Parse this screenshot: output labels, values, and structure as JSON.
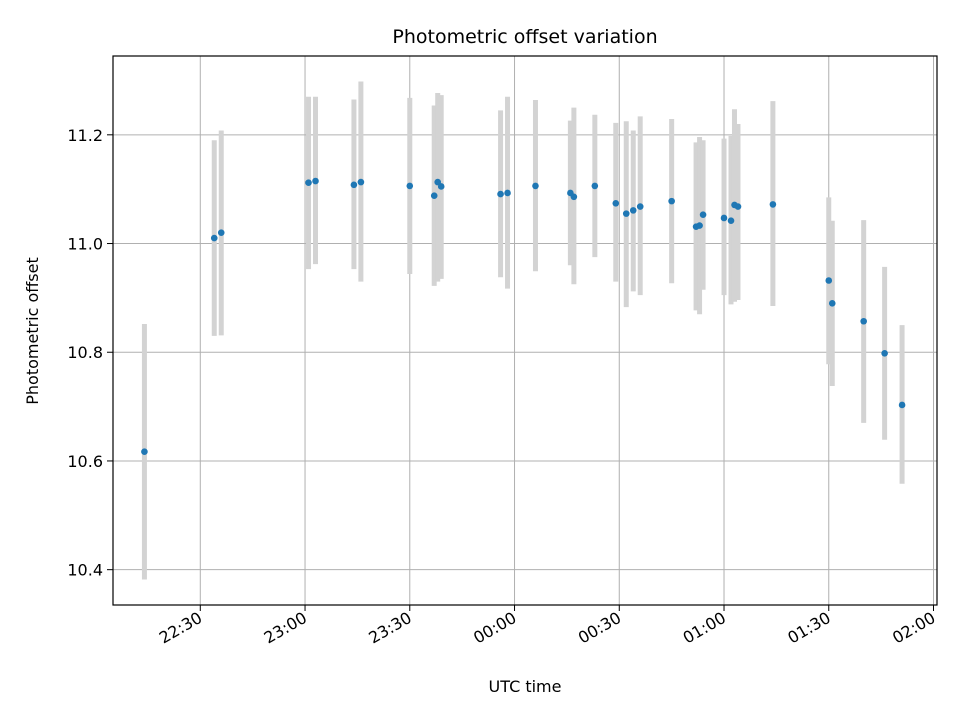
{
  "chart_data": {
    "type": "scatter",
    "title": "Photometric offset variation",
    "xlabel": "UTC time",
    "ylabel": "Photometric offset",
    "grid": true,
    "xlim": [
      "22:05",
      "02:01"
    ],
    "ylim": [
      10.335,
      11.345
    ],
    "x_ticks": [
      "22:30",
      "23:00",
      "23:30",
      "00:00",
      "00:30",
      "01:00",
      "01:30",
      "02:00"
    ],
    "y_ticks": [
      "10.4",
      "10.6",
      "10.8",
      "11.0",
      "11.2"
    ],
    "marker_color": "#1f77b4",
    "errorbar_color": "#d3d3d3",
    "points": [
      {
        "x": "22:14",
        "y": 10.617,
        "lo": 10.382,
        "hi": 10.852
      },
      {
        "x": "22:34",
        "y": 11.01,
        "lo": 10.83,
        "hi": 11.19
      },
      {
        "x": "22:36",
        "y": 11.02,
        "lo": 10.831,
        "hi": 11.208
      },
      {
        "x": "23:01",
        "y": 11.112,
        "lo": 10.953,
        "hi": 11.27
      },
      {
        "x": "23:03",
        "y": 11.115,
        "lo": 10.962,
        "hi": 11.27
      },
      {
        "x": "23:14",
        "y": 11.108,
        "lo": 10.953,
        "hi": 11.265
      },
      {
        "x": "23:16",
        "y": 11.113,
        "lo": 10.93,
        "hi": 11.298
      },
      {
        "x": "23:30",
        "y": 11.106,
        "lo": 10.944,
        "hi": 11.268
      },
      {
        "x": "23:37",
        "y": 11.088,
        "lo": 10.922,
        "hi": 11.254
      },
      {
        "x": "23:38",
        "y": 11.113,
        "lo": 10.93,
        "hi": 11.277
      },
      {
        "x": "23:39",
        "y": 11.105,
        "lo": 10.935,
        "hi": 11.273
      },
      {
        "x": "23:56",
        "y": 11.091,
        "lo": 10.938,
        "hi": 11.245
      },
      {
        "x": "23:58",
        "y": 11.093,
        "lo": 10.917,
        "hi": 11.27
      },
      {
        "x": "00:06",
        "y": 11.106,
        "lo": 10.949,
        "hi": 11.264
      },
      {
        "x": "00:16",
        "y": 11.093,
        "lo": 10.96,
        "hi": 11.226
      },
      {
        "x": "00:17",
        "y": 11.086,
        "lo": 10.925,
        "hi": 11.25
      },
      {
        "x": "00:23",
        "y": 11.106,
        "lo": 10.975,
        "hi": 11.237
      },
      {
        "x": "00:29",
        "y": 11.074,
        "lo": 10.93,
        "hi": 11.222
      },
      {
        "x": "00:32",
        "y": 11.055,
        "lo": 10.883,
        "hi": 11.225
      },
      {
        "x": "00:34",
        "y": 11.061,
        "lo": 10.912,
        "hi": 11.208
      },
      {
        "x": "00:36",
        "y": 11.068,
        "lo": 10.905,
        "hi": 11.234
      },
      {
        "x": "00:45",
        "y": 11.078,
        "lo": 10.927,
        "hi": 11.229
      },
      {
        "x": "00:52",
        "y": 11.031,
        "lo": 10.877,
        "hi": 11.186
      },
      {
        "x": "00:53",
        "y": 11.033,
        "lo": 10.87,
        "hi": 11.196
      },
      {
        "x": "00:54",
        "y": 11.053,
        "lo": 10.915,
        "hi": 11.19
      },
      {
        "x": "01:00",
        "y": 11.047,
        "lo": 10.905,
        "hi": 11.193
      },
      {
        "x": "01:02",
        "y": 11.042,
        "lo": 10.888,
        "hi": 11.198
      },
      {
        "x": "01:03",
        "y": 11.071,
        "lo": 10.893,
        "hi": 11.247
      },
      {
        "x": "01:04",
        "y": 11.068,
        "lo": 10.896,
        "hi": 11.22
      },
      {
        "x": "01:14",
        "y": 11.072,
        "lo": 10.885,
        "hi": 11.262
      },
      {
        "x": "01:30",
        "y": 10.932,
        "lo": 10.778,
        "hi": 11.085
      },
      {
        "x": "01:31",
        "y": 10.89,
        "lo": 10.738,
        "hi": 11.042
      },
      {
        "x": "01:40",
        "y": 10.857,
        "lo": 10.67,
        "hi": 11.043
      },
      {
        "x": "01:46",
        "y": 10.798,
        "lo": 10.639,
        "hi": 10.957
      },
      {
        "x": "01:51",
        "y": 10.703,
        "lo": 10.558,
        "hi": 10.85
      }
    ]
  }
}
